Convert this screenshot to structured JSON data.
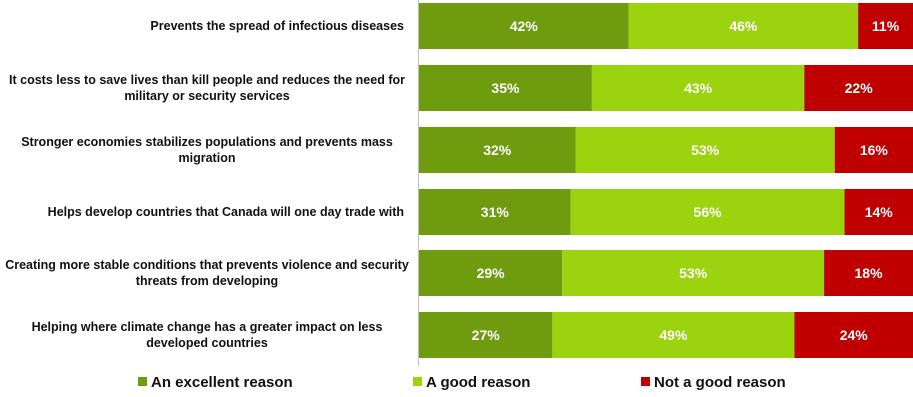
{
  "chart_data": {
    "type": "bar",
    "orientation": "horizontal",
    "stacked": true,
    "categories": [
      "Prevents the spread of infectious diseases",
      "It costs less to save lives than kill people and reduces the need for military or security services",
      "Stronger economies stabilizes populations and prevents mass migration",
      "Helps develop countries that Canada will one day trade with",
      "Creating more stable conditions that prevents violence and security threats from developing",
      "Helping where climate change has a greater impact on less developed countries"
    ],
    "category_lines": [
      [
        "Prevents the spread of infectious diseases"
      ],
      [
        "It costs less to save lives than kill people and reduces the need for",
        "military or security services"
      ],
      [
        "Stronger economies stabilizes populations and prevents mass",
        "migration"
      ],
      [
        "Helps develop countries that Canada will one day trade with"
      ],
      [
        "Creating more stable conditions that prevents violence and security",
        "threats from developing"
      ],
      [
        "Helping where climate change has a greater impact on less",
        "developed countries"
      ]
    ],
    "series": [
      {
        "name": "An excellent reason",
        "color": "#6f9c0f",
        "values": [
          42,
          35,
          32,
          31,
          29,
          27
        ],
        "labels": [
          "42%",
          "35%",
          "32%",
          "31%",
          "29%",
          "27%"
        ]
      },
      {
        "name": "A good reason",
        "color": "#9bd30f",
        "values": [
          46,
          43,
          53,
          56,
          53,
          49
        ],
        "labels": [
          "46%",
          "43%",
          "53%",
          "56%",
          "53%",
          "49%"
        ]
      },
      {
        "name": "Not a good reason",
        "color": "#c00000",
        "values": [
          11,
          22,
          16,
          14,
          18,
          24
        ],
        "labels": [
          "11%",
          "22%",
          "16%",
          "14%",
          "18%",
          "24%"
        ]
      }
    ],
    "xlim": [
      0,
      100
    ],
    "unit": "%",
    "grid": false,
    "legend_position": "bottom"
  }
}
